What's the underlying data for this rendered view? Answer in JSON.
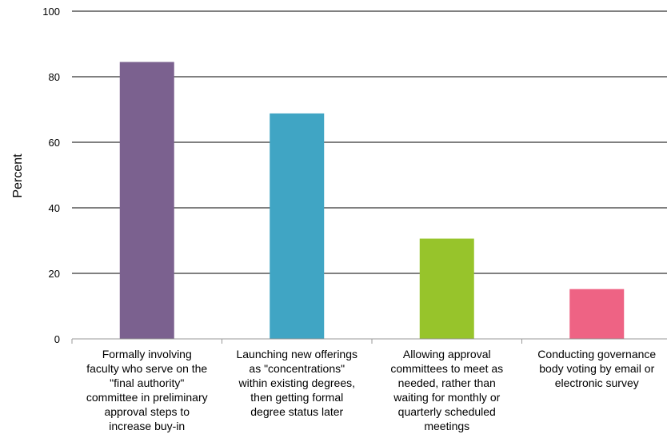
{
  "chart_data": {
    "type": "bar",
    "title": "",
    "xlabel": "",
    "ylabel": "Percent",
    "ylim": [
      0,
      100
    ],
    "yticks": [
      0,
      20,
      40,
      60,
      80,
      100
    ],
    "grid": true,
    "categories": [
      "Formally involving faculty who serve on the \"final authority\" committee in preliminary approval steps to increase buy-in",
      "Launching new offerings as \"concentrations\" within existing degrees, then getting formal degree status later",
      "Allowing approval committees to meet as needed, rather than waiting for monthly or quarterly scheduled meetings",
      "Conducting governance body voting by email or electronic survey"
    ],
    "category_lines": [
      [
        "Formally involving",
        "faculty who serve on the",
        "\"final authority\"",
        "committee in preliminary",
        "approval steps to",
        "increase buy-in"
      ],
      [
        "Launching new offerings",
        "as \"concentrations\"",
        "within existing degrees,",
        "then getting formal",
        "degree status later"
      ],
      [
        "Allowing approval",
        "committees to meet as",
        "needed, rather than",
        "waiting for monthly or",
        "quarterly scheduled",
        "meetings"
      ],
      [
        "Conducting governance",
        "body voting by email or",
        "electronic survey"
      ]
    ],
    "values": [
      84.5,
      68.8,
      30.6,
      15.2
    ],
    "colors": [
      "#7b618f",
      "#40a5c4",
      "#97c42b",
      "#ee6384"
    ]
  }
}
